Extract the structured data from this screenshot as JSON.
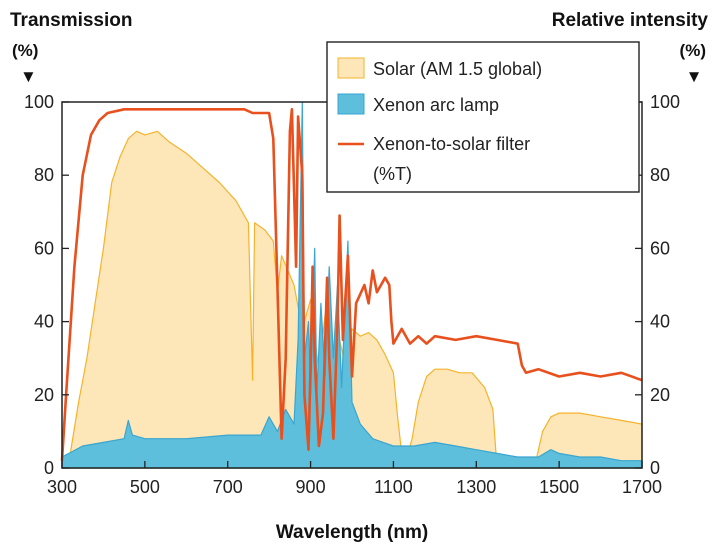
{
  "chart_data": {
    "type": "area",
    "left_axis": {
      "title": "Transmission",
      "unit": "(%)",
      "arrow": "▼",
      "range": [
        0,
        100
      ],
      "ticks": [
        "0",
        "20",
        "40",
        "60",
        "80",
        "100"
      ]
    },
    "right_axis": {
      "title": "Relative intensity",
      "unit": "(%)",
      "arrow": "▼",
      "range": [
        0,
        100
      ],
      "ticks": [
        "0",
        "20",
        "40",
        "60",
        "80",
        "100"
      ]
    },
    "x_axis": {
      "title": "Wavelength (nm)",
      "range": [
        300,
        1700
      ],
      "ticks": [
        "300",
        "500",
        "700",
        "900",
        "1100",
        "1300",
        "1500",
        "1700"
      ]
    },
    "grid": false,
    "legend_position": "top-right",
    "colors": {
      "solar_fill": "#fde7b8",
      "solar_line": "#f5b32c",
      "xenon_fill": "#5dbfdc",
      "xenon_line": "#3aa5cf",
      "filter_line": "#e8501e"
    },
    "series": [
      {
        "name": "Solar (AM 1.5 global)",
        "legend_line1": "Solar (AM 1.5 global)",
        "kind": "area",
        "points": [
          [
            300,
            0
          ],
          [
            320,
            4
          ],
          [
            340,
            18
          ],
          [
            360,
            30
          ],
          [
            380,
            45
          ],
          [
            400,
            60
          ],
          [
            420,
            78
          ],
          [
            440,
            85
          ],
          [
            460,
            90
          ],
          [
            480,
            92
          ],
          [
            500,
            91
          ],
          [
            530,
            92
          ],
          [
            560,
            89
          ],
          [
            600,
            86
          ],
          [
            640,
            82
          ],
          [
            680,
            78
          ],
          [
            720,
            73
          ],
          [
            750,
            67
          ],
          [
            760,
            24
          ],
          [
            765,
            67
          ],
          [
            790,
            65
          ],
          [
            810,
            62
          ],
          [
            820,
            48
          ],
          [
            830,
            58
          ],
          [
            860,
            50
          ],
          [
            880,
            38
          ],
          [
            900,
            46
          ],
          [
            920,
            26
          ],
          [
            935,
            42
          ],
          [
            950,
            21
          ],
          [
            960,
            40
          ],
          [
            980,
            30
          ],
          [
            1000,
            38
          ],
          [
            1020,
            36
          ],
          [
            1040,
            37
          ],
          [
            1060,
            35
          ],
          [
            1080,
            31
          ],
          [
            1100,
            26
          ],
          [
            1110,
            14
          ],
          [
            1120,
            4
          ],
          [
            1130,
            2
          ],
          [
            1145,
            8
          ],
          [
            1160,
            18
          ],
          [
            1180,
            25
          ],
          [
            1200,
            27
          ],
          [
            1230,
            27
          ],
          [
            1260,
            26
          ],
          [
            1290,
            26
          ],
          [
            1320,
            22
          ],
          [
            1340,
            16
          ],
          [
            1350,
            0
          ],
          [
            1440,
            0
          ],
          [
            1460,
            10
          ],
          [
            1480,
            14
          ],
          [
            1500,
            15
          ],
          [
            1550,
            15
          ],
          [
            1600,
            14
          ],
          [
            1650,
            13
          ],
          [
            1700,
            12
          ]
        ]
      },
      {
        "name": "Xenon arc lamp",
        "legend_line1": "Xenon arc lamp",
        "kind": "area",
        "points": [
          [
            300,
            3
          ],
          [
            350,
            6
          ],
          [
            400,
            7
          ],
          [
            450,
            8
          ],
          [
            460,
            13
          ],
          [
            470,
            9
          ],
          [
            500,
            8
          ],
          [
            600,
            8
          ],
          [
            700,
            9
          ],
          [
            750,
            9
          ],
          [
            780,
            9
          ],
          [
            800,
            14
          ],
          [
            820,
            10
          ],
          [
            840,
            16
          ],
          [
            860,
            12
          ],
          [
            870,
            35
          ],
          [
            880,
            100
          ],
          [
            885,
            30
          ],
          [
            895,
            40
          ],
          [
            900,
            20
          ],
          [
            910,
            60
          ],
          [
            915,
            20
          ],
          [
            925,
            45
          ],
          [
            935,
            25
          ],
          [
            945,
            55
          ],
          [
            955,
            30
          ],
          [
            965,
            50
          ],
          [
            975,
            22
          ],
          [
            990,
            62
          ],
          [
            1000,
            18
          ],
          [
            1020,
            12
          ],
          [
            1050,
            8
          ],
          [
            1100,
            6
          ],
          [
            1150,
            6
          ],
          [
            1200,
            7
          ],
          [
            1250,
            6
          ],
          [
            1300,
            5
          ],
          [
            1350,
            4
          ],
          [
            1400,
            3
          ],
          [
            1450,
            3
          ],
          [
            1480,
            5
          ],
          [
            1500,
            4
          ],
          [
            1550,
            3
          ],
          [
            1600,
            3
          ],
          [
            1650,
            2
          ],
          [
            1700,
            2
          ]
        ]
      },
      {
        "name": "Xenon-to-solar filter (%T)",
        "legend_line1": "Xenon-to-solar filter",
        "legend_line2": "(%T)",
        "kind": "line",
        "points": [
          [
            300,
            2
          ],
          [
            310,
            20
          ],
          [
            330,
            55
          ],
          [
            350,
            80
          ],
          [
            370,
            91
          ],
          [
            390,
            95
          ],
          [
            410,
            97
          ],
          [
            450,
            98
          ],
          [
            500,
            98
          ],
          [
            560,
            98
          ],
          [
            620,
            98
          ],
          [
            680,
            98
          ],
          [
            740,
            98
          ],
          [
            760,
            97
          ],
          [
            780,
            97
          ],
          [
            800,
            97
          ],
          [
            810,
            90
          ],
          [
            820,
            50
          ],
          [
            830,
            8
          ],
          [
            840,
            30
          ],
          [
            850,
            92
          ],
          [
            855,
            98
          ],
          [
            865,
            55
          ],
          [
            870,
            96
          ],
          [
            880,
            80
          ],
          [
            885,
            20
          ],
          [
            895,
            5
          ],
          [
            900,
            28
          ],
          [
            905,
            55
          ],
          [
            910,
            30
          ],
          [
            920,
            6
          ],
          [
            930,
            15
          ],
          [
            940,
            52
          ],
          [
            945,
            30
          ],
          [
            955,
            8
          ],
          [
            965,
            40
          ],
          [
            970,
            69
          ],
          [
            978,
            35
          ],
          [
            990,
            58
          ],
          [
            1000,
            25
          ],
          [
            1010,
            45
          ],
          [
            1030,
            50
          ],
          [
            1040,
            45
          ],
          [
            1050,
            54
          ],
          [
            1060,
            48
          ],
          [
            1080,
            52
          ],
          [
            1090,
            50
          ],
          [
            1095,
            40
          ],
          [
            1100,
            34
          ],
          [
            1120,
            38
          ],
          [
            1140,
            34
          ],
          [
            1160,
            36
          ],
          [
            1180,
            34
          ],
          [
            1200,
            36
          ],
          [
            1250,
            35
          ],
          [
            1300,
            36
          ],
          [
            1350,
            35
          ],
          [
            1400,
            34
          ],
          [
            1410,
            28
          ],
          [
            1420,
            26
          ],
          [
            1450,
            27
          ],
          [
            1500,
            25
          ],
          [
            1550,
            26
          ],
          [
            1600,
            25
          ],
          [
            1650,
            26
          ],
          [
            1700,
            24
          ]
        ]
      }
    ]
  }
}
